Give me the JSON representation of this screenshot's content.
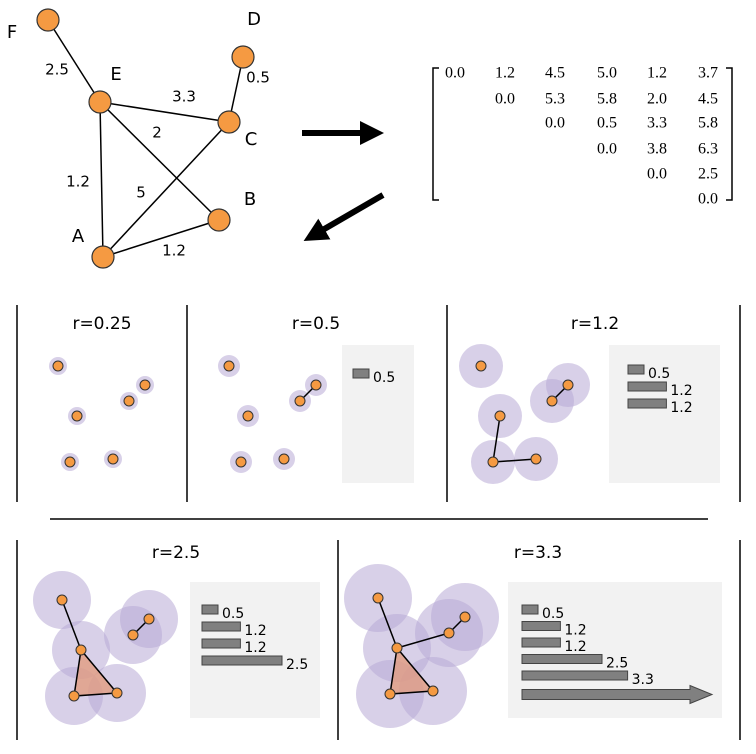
{
  "graph": {
    "nodes": [
      "F",
      "E",
      "D",
      "C",
      "B",
      "A"
    ],
    "edges": [
      "2.5",
      "3.3",
      "0.5",
      "2",
      "1.2",
      "5",
      "1.2"
    ]
  },
  "matrix": {
    "rows": [
      [
        "0.0",
        "1.2",
        "4.5",
        "5.0",
        "1.2",
        "3.7"
      ],
      [
        "0.0",
        "5.3",
        "5.8",
        "2.0",
        "4.5"
      ],
      [
        "0.0",
        "0.5",
        "3.3",
        "5.8"
      ],
      [
        "0.0",
        "3.8",
        "6.3"
      ],
      [
        "0.0",
        "2.5"
      ],
      [
        "0.0"
      ]
    ]
  },
  "panels": [
    {
      "title": "r=0.25",
      "bars": []
    },
    {
      "title": "r=0.5",
      "bars": [
        0.5
      ]
    },
    {
      "title": "r=1.2",
      "bars": [
        0.5,
        1.2,
        1.2
      ]
    },
    {
      "title": "r=2.5",
      "bars": [
        0.5,
        1.2,
        1.2,
        2.5
      ]
    },
    {
      "title": "r=3.3",
      "bars": [
        0.5,
        1.2,
        1.2,
        2.5,
        3.3
      ]
    }
  ]
}
